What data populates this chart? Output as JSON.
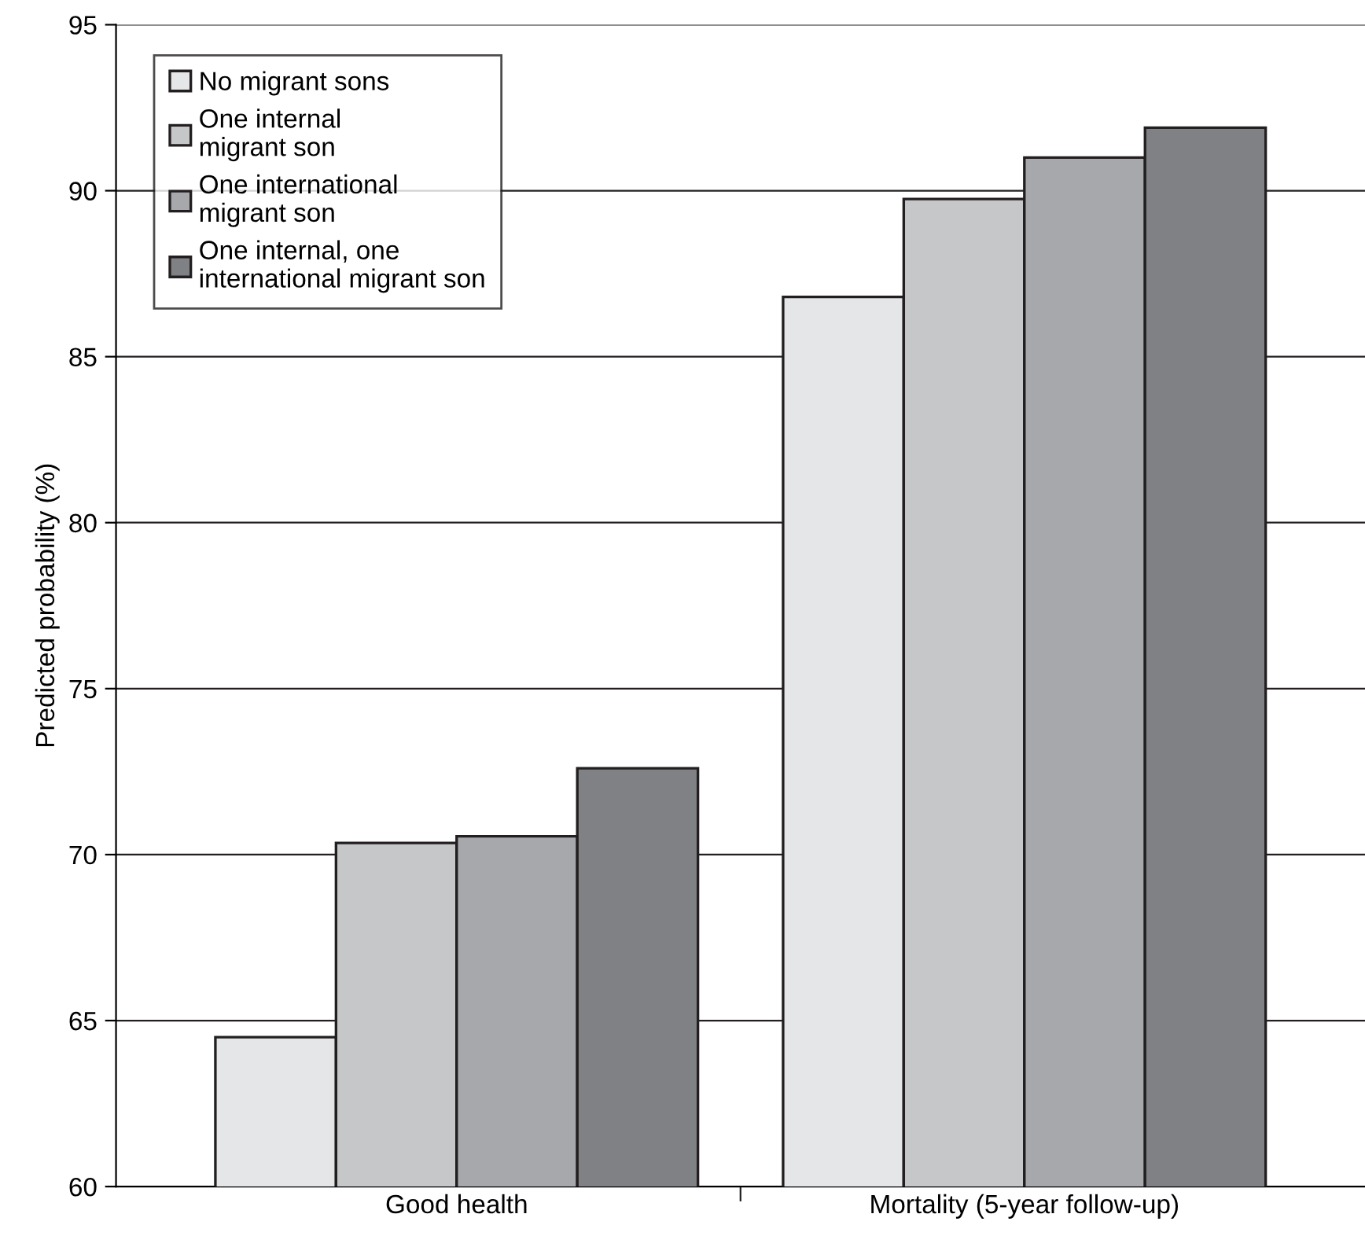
{
  "chart_data": {
    "type": "bar",
    "ylabel": "Predicted probability (%)",
    "categories": [
      "Good health",
      "Mortality (5-year follow-up)"
    ],
    "series": [
      {
        "name": "No migrant sons",
        "color": "#e5e6e8",
        "values": [
          64.5,
          86.8
        ]
      },
      {
        "name": "One internal\nmigrant son",
        "color": "#c6c7c9",
        "values": [
          70.35,
          89.75
        ]
      },
      {
        "name": "One international\nmigrant son",
        "color": "#a7a8ab",
        "values": [
          70.55,
          91.0
        ]
      },
      {
        "name": "One internal, one\ninternational migrant son",
        "color": "#808184",
        "values": [
          72.6,
          91.9
        ]
      }
    ],
    "ylim": [
      60,
      95
    ],
    "yticks": [
      60,
      65,
      70,
      75,
      80,
      85,
      90,
      95
    ],
    "grid": "y",
    "legend": "top left"
  }
}
